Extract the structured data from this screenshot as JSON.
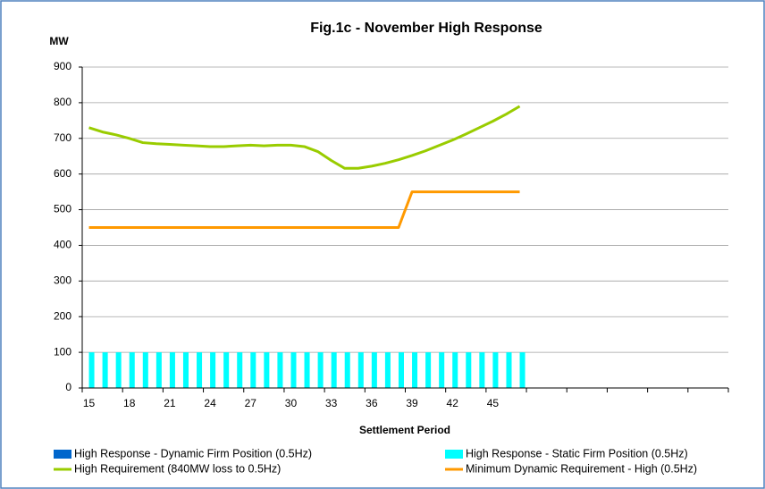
{
  "chart_data": {
    "type": "bar_line",
    "title": "Fig.1c - November High Response",
    "ylabel": "MW",
    "xlabel": "Settlement Period",
    "categories": [
      15,
      null,
      null,
      18,
      null,
      null,
      21,
      null,
      null,
      24,
      null,
      null,
      27,
      null,
      null,
      30,
      null,
      null,
      33,
      null,
      null,
      36,
      null,
      null,
      39,
      null,
      null,
      42,
      null,
      null,
      45,
      null,
      null,
      null,
      null,
      null,
      null,
      null,
      null,
      null,
      null,
      null,
      null,
      null,
      null,
      null,
      null,
      null
    ],
    "ylim": [
      0,
      900
    ],
    "yticks": [
      0,
      100,
      200,
      300,
      400,
      500,
      600,
      700,
      800,
      900
    ],
    "grid": true,
    "legend": "bottom",
    "series": [
      {
        "name": "High Response - Dynamic Firm Position (0.5Hz)",
        "type": "bar",
        "color": "#0066cc",
        "values": [
          0,
          0,
          0,
          0,
          0,
          0,
          0,
          0,
          0,
          0,
          0,
          0,
          0,
          0,
          0,
          0,
          0,
          0,
          0,
          0,
          0,
          0,
          0,
          0,
          0,
          0,
          0,
          0,
          0,
          0,
          0,
          0,
          0,
          null,
          null,
          null,
          null,
          null,
          null,
          null,
          null,
          null,
          null,
          null,
          null,
          null,
          null,
          null
        ]
      },
      {
        "name": "High Response - Static Firm Position (0.5Hz)",
        "type": "bar",
        "color": "#00ffff",
        "values": [
          100,
          100,
          100,
          100,
          100,
          100,
          100,
          100,
          100,
          100,
          100,
          100,
          100,
          100,
          100,
          100,
          100,
          100,
          100,
          100,
          100,
          100,
          100,
          100,
          100,
          100,
          100,
          100,
          100,
          100,
          100,
          100,
          100,
          null,
          null,
          null,
          null,
          null,
          null,
          null,
          null,
          null,
          null,
          null,
          null,
          null,
          null,
          null
        ]
      },
      {
        "name": "High Requirement (840MW loss to 0.5Hz)",
        "type": "line",
        "color": "#99cc00",
        "values": [
          730,
          718,
          710,
          700,
          688,
          685,
          683,
          681,
          679,
          677,
          677,
          679,
          681,
          679,
          681,
          681,
          677,
          663,
          638,
          616,
          616,
          622,
          630,
          640,
          652,
          665,
          680,
          695,
          712,
          730,
          748,
          768,
          790,
          null,
          null,
          null,
          null,
          null,
          null,
          null,
          null,
          null,
          null,
          null,
          null,
          null,
          null,
          null
        ]
      },
      {
        "name": "Minimum Dynamic Requirement - High (0.5Hz)",
        "type": "line",
        "color": "#ff9900",
        "values": [
          450,
          450,
          450,
          450,
          450,
          450,
          450,
          450,
          450,
          450,
          450,
          450,
          450,
          450,
          450,
          450,
          450,
          450,
          450,
          450,
          450,
          450,
          450,
          450,
          550,
          550,
          550,
          550,
          550,
          550,
          550,
          550,
          550,
          null,
          null,
          null,
          null,
          null,
          null,
          null,
          null,
          null,
          null,
          null,
          null,
          null,
          null,
          null
        ]
      }
    ]
  }
}
